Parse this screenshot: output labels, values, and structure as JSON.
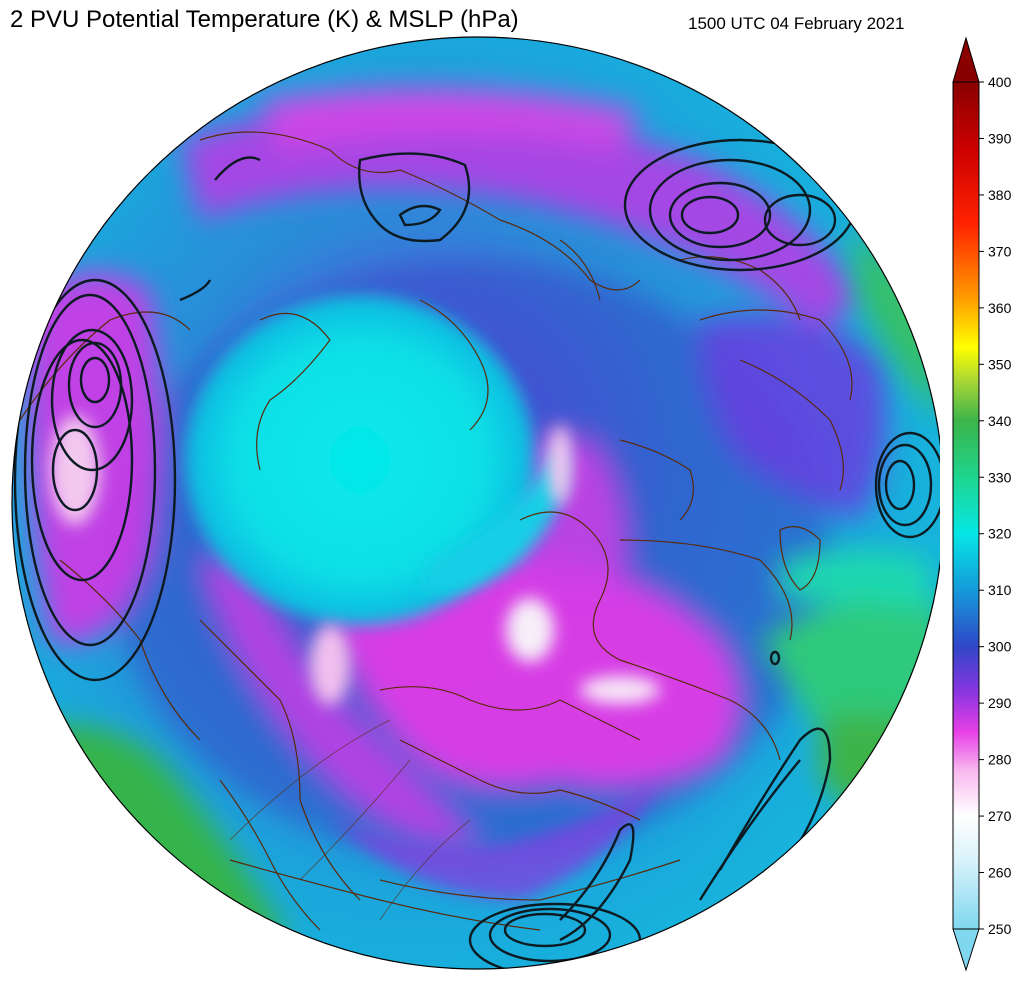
{
  "header": {
    "title": "2 PVU Potential Temperature (K) & MSLP (hPa)",
    "valid_time": "1500 UTC 04 February 2021"
  },
  "map": {
    "projection": "north-polar stereographic (circular)",
    "field": "2 PVU potential temperature shaded",
    "contours": "MSLP (black)",
    "coastline_color": "#5a2a0a",
    "pressure_contour_color": "#0c1a22"
  },
  "colorbar": {
    "ticks": [
      "250",
      "260",
      "270",
      "280",
      "290",
      "300",
      "310",
      "320",
      "330",
      "340",
      "350",
      "360",
      "370",
      "380",
      "390",
      "400"
    ],
    "extend": "both",
    "stops": [
      {
        "value": 250,
        "color": "#7fd8ef"
      },
      {
        "value": 262,
        "color": "#d8f2fa"
      },
      {
        "value": 270,
        "color": "#ffffff"
      },
      {
        "value": 278,
        "color": "#f8b8ef"
      },
      {
        "value": 285,
        "color": "#e63fe6"
      },
      {
        "value": 292,
        "color": "#8a35e0"
      },
      {
        "value": 300,
        "color": "#2f47c8"
      },
      {
        "value": 310,
        "color": "#159ad9"
      },
      {
        "value": 320,
        "color": "#06e6e6"
      },
      {
        "value": 330,
        "color": "#1ed58e"
      },
      {
        "value": 340,
        "color": "#3cb44a"
      },
      {
        "value": 347,
        "color": "#a8d635"
      },
      {
        "value": 353,
        "color": "#ffff00"
      },
      {
        "value": 362,
        "color": "#ff9900"
      },
      {
        "value": 375,
        "color": "#ff2200"
      },
      {
        "value": 388,
        "color": "#cc0000"
      },
      {
        "value": 400,
        "color": "#8a0000"
      }
    ]
  }
}
